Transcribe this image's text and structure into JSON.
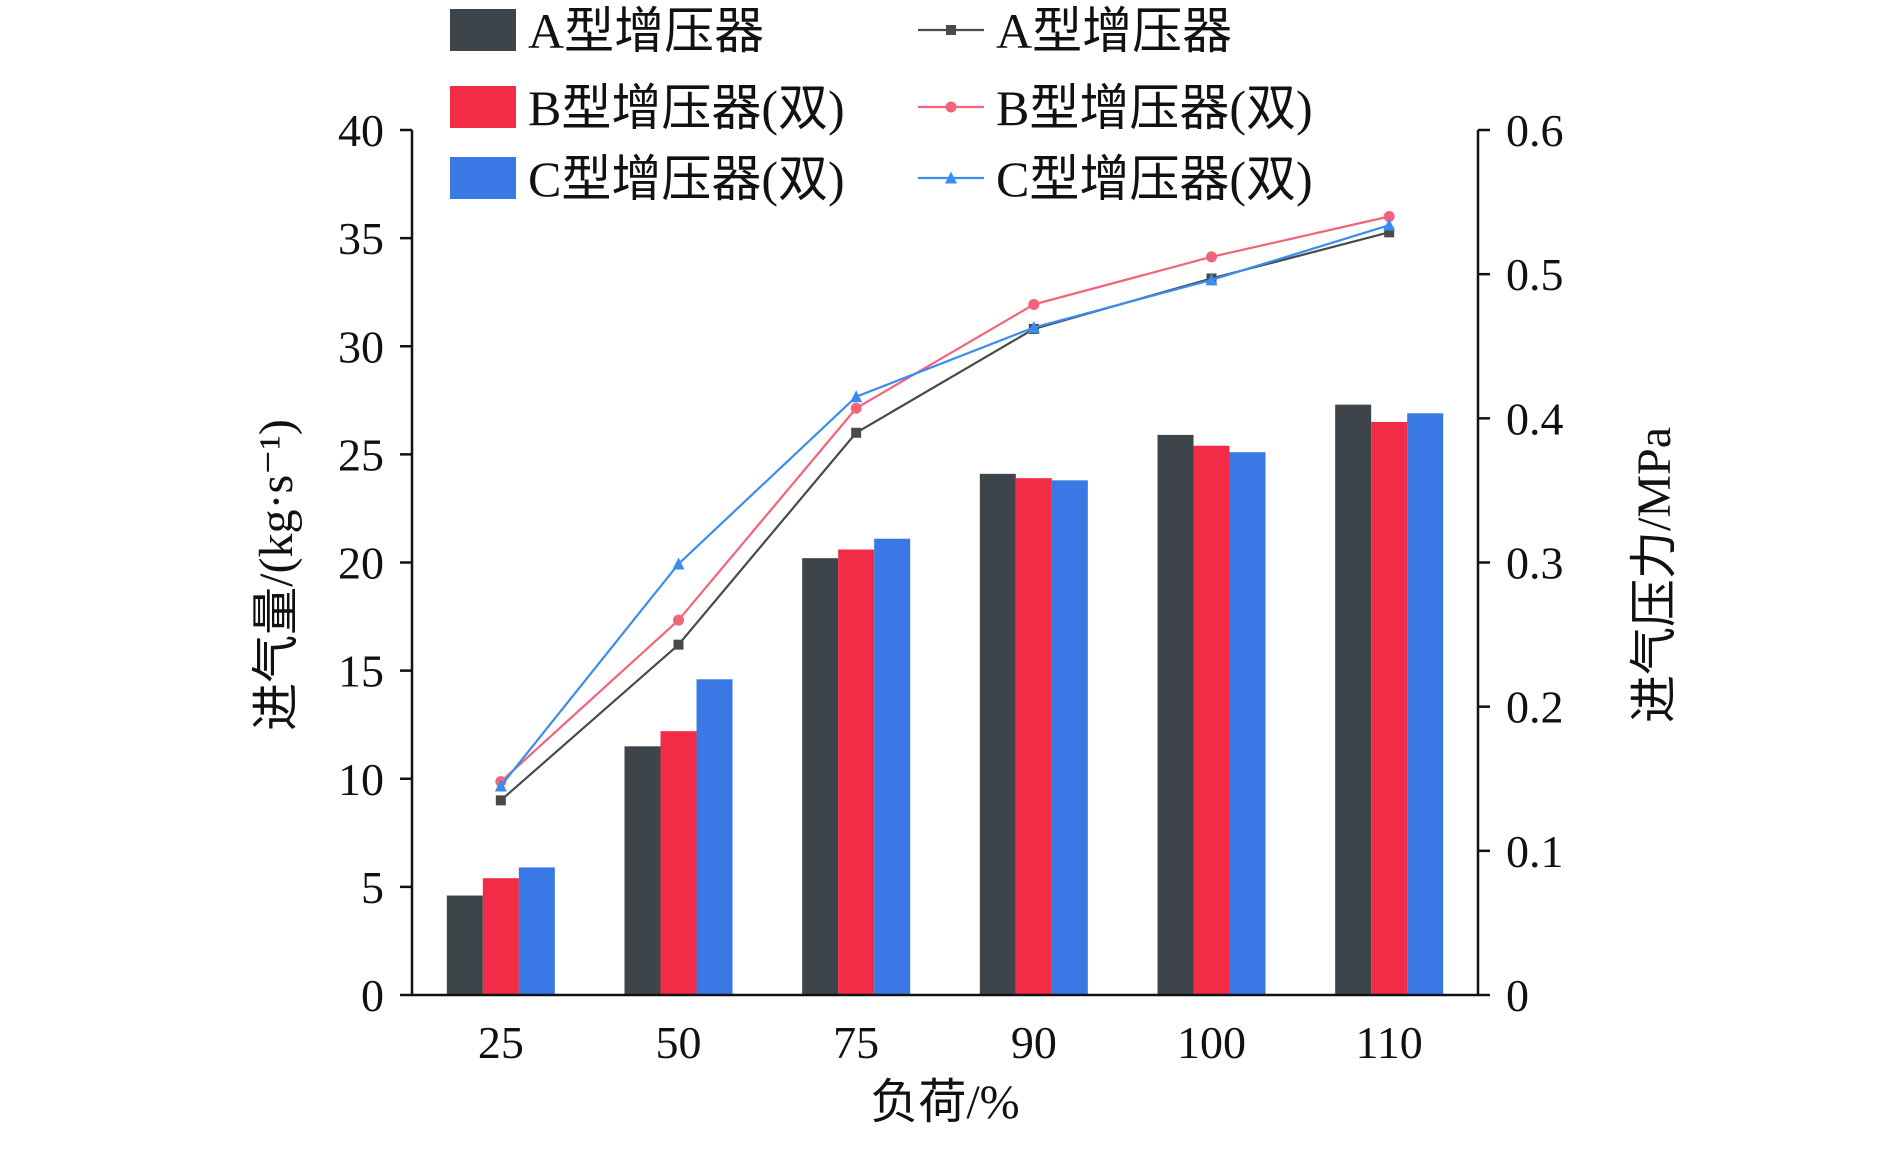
{
  "chart_data": {
    "type": "bar+line",
    "xlabel": "负荷/%",
    "ylabel_left": "进气量/(kg·s⁻¹)",
    "ylabel_right": "进气压力/MPa",
    "categories": [
      "25",
      "50",
      "75",
      "90",
      "100",
      "110"
    ],
    "ylim_left": [
      0,
      40
    ],
    "yticks_left": [
      "0",
      "5",
      "10",
      "15",
      "20",
      "25",
      "30",
      "35",
      "40"
    ],
    "ylim_right": [
      0,
      0.6
    ],
    "yticks_right": [
      "0",
      "0.1",
      "0.2",
      "0.3",
      "0.4",
      "0.5",
      "0.6"
    ],
    "grid": false,
    "legend_position": "top",
    "bar_series": [
      {
        "name": "A型增压器",
        "color": "#3d454a",
        "values": [
          4.6,
          11.5,
          20.2,
          24.1,
          25.9,
          27.3
        ]
      },
      {
        "name": "B型增压器(双)",
        "color": "#f22b47",
        "values": [
          5.4,
          12.2,
          20.6,
          23.9,
          25.4,
          26.5
        ]
      },
      {
        "name": "C型增压器(双)",
        "color": "#3a78e6",
        "values": [
          5.9,
          14.6,
          21.1,
          23.8,
          25.1,
          26.9
        ]
      }
    ],
    "line_series": [
      {
        "name": "A型增压器",
        "color": "#4a4a4a",
        "marker": "square",
        "values": [
          0.135,
          0.243,
          0.39,
          0.462,
          0.497,
          0.529
        ]
      },
      {
        "name": "B型增压器(双)",
        "color": "#f2647a",
        "marker": "circle",
        "values": [
          0.148,
          0.26,
          0.407,
          0.479,
          0.512,
          0.54
        ]
      },
      {
        "name": "C型增压器(双)",
        "color": "#3a8cf0",
        "marker": "triangle",
        "values": [
          0.145,
          0.299,
          0.415,
          0.463,
          0.496,
          0.534
        ]
      }
    ]
  }
}
